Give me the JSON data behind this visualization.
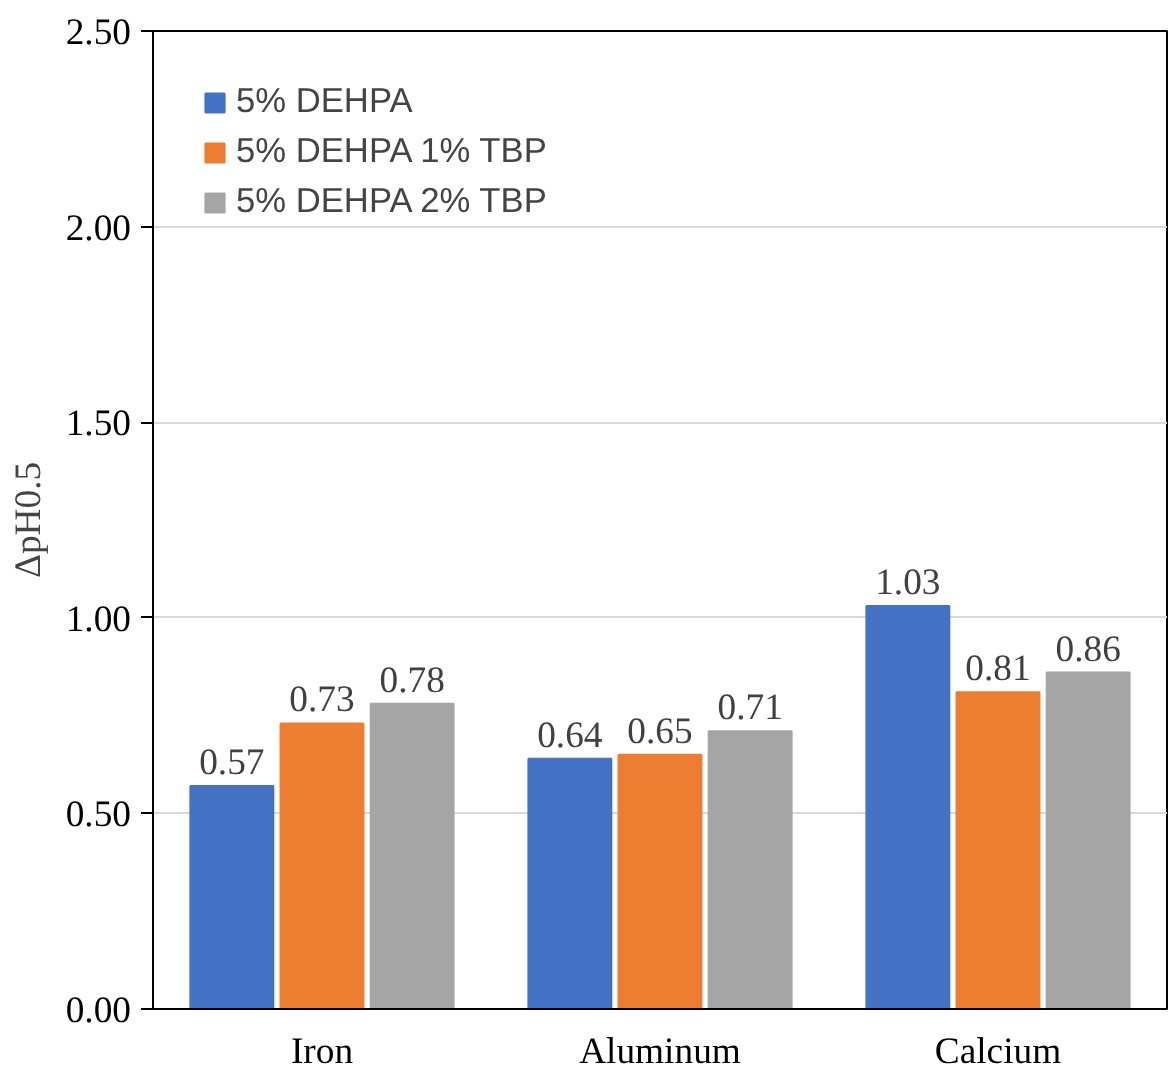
{
  "chart_data": {
    "type": "bar",
    "ylabel": "ΔpH0.5",
    "categories": [
      "Iron",
      "Aluminum",
      "Calcium"
    ],
    "series": [
      {
        "name": "5% DEHPA",
        "color": "#4472c4",
        "values": [
          0.57,
          0.64,
          1.03
        ]
      },
      {
        "name": "5% DEHPA 1% TBP",
        "color": "#ed7d31",
        "values": [
          0.73,
          0.65,
          0.81
        ]
      },
      {
        "name": "5% DEHPA 2% TBP",
        "color": "#a5a5a5",
        "values": [
          0.78,
          0.71,
          0.86
        ]
      }
    ],
    "ylim": [
      0,
      2.5
    ],
    "yticks": [
      "0.00",
      "0.50",
      "1.00",
      "1.50",
      "2.00",
      "2.50"
    ],
    "data_labels": true,
    "grid": "y",
    "legend": "top left"
  }
}
